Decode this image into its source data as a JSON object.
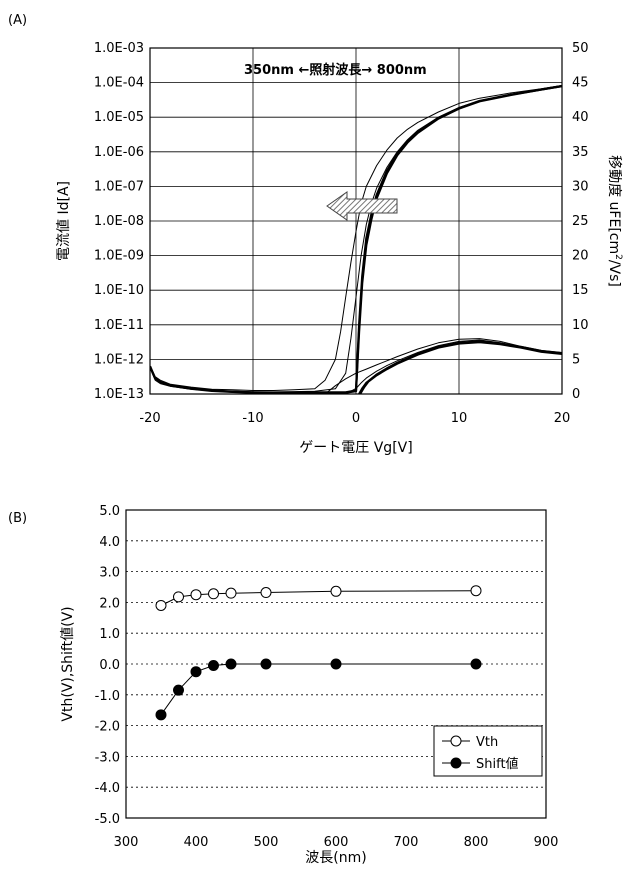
{
  "chart_data": [
    {
      "panel_label": "(A)",
      "type": "line",
      "xlabel": "ゲート電圧 Vg[V]",
      "ylabel_left": "電流値 Id[A]",
      "ylabel_right": "移動度 uFE[cm2/Vs]",
      "xlim": [
        -20,
        20
      ],
      "x_ticks": [
        "-20",
        "-10",
        "0",
        "10",
        "20"
      ],
      "y_left_log_range": [
        -13,
        -3
      ],
      "y_left_ticks": [
        "1.0E-13",
        "1.0E-12",
        "1.0E-11",
        "1.0E-10",
        "1.0E-09",
        "1.0E-08",
        "1.0E-07",
        "1.0E-06",
        "1.0E-05",
        "1.0E-04",
        "1.0E-03"
      ],
      "y_right_range": [
        0,
        50
      ],
      "y_right_ticks": [
        "0",
        "5",
        "10",
        "15",
        "20",
        "25",
        "30",
        "35",
        "40",
        "45",
        "50"
      ],
      "annotation": "350nm ←照射波長→ 800nm",
      "grid": true,
      "id_curves": [
        {
          "x": [
            -20,
            -19.5,
            -19,
            -18,
            -16,
            -14,
            -12,
            -10,
            -8,
            -6,
            -4,
            -3,
            -2,
            -1.5,
            -1,
            -0.5,
            0,
            0.5,
            1,
            2,
            3,
            4,
            5,
            6,
            8,
            10,
            12,
            15,
            18,
            20
          ],
          "y": [
            -12.2,
            -12.5,
            -12.6,
            -12.72,
            -12.8,
            -12.86,
            -12.88,
            -12.9,
            -12.9,
            -12.88,
            -12.85,
            -12.6,
            -12.0,
            -11.2,
            -10.2,
            -9.2,
            -8.3,
            -7.5,
            -7.0,
            -6.4,
            -5.95,
            -5.6,
            -5.35,
            -5.15,
            -4.85,
            -4.6,
            -4.45,
            -4.3,
            -4.18,
            -4.08
          ]
        },
        {
          "x": [
            -20,
            -19.5,
            -19,
            -18,
            -16,
            -14,
            -12,
            -10,
            -8,
            -6,
            -4,
            -2,
            -1,
            -0.5,
            0,
            0.5,
            1,
            1.5,
            2,
            3,
            4,
            5,
            6,
            8,
            10,
            12,
            15,
            18,
            20
          ],
          "y": [
            -12.25,
            -12.6,
            -12.7,
            -12.78,
            -12.86,
            -12.9,
            -12.92,
            -12.94,
            -12.94,
            -12.93,
            -12.92,
            -12.85,
            -12.4,
            -11.4,
            -10.2,
            -9.0,
            -8.1,
            -7.5,
            -7.05,
            -6.45,
            -6.0,
            -5.65,
            -5.38,
            -5.0,
            -4.72,
            -4.52,
            -4.34,
            -4.2,
            -4.1
          ]
        },
        {
          "x": [
            -20,
            -19.5,
            -19,
            -18,
            -16,
            -14,
            -12,
            -10,
            -8,
            -6,
            -4,
            -2,
            -1,
            0,
            0.3,
            0.6,
            1,
            1.5,
            2,
            3,
            4,
            5,
            6,
            8,
            10,
            12,
            15,
            18,
            20
          ],
          "y": [
            -12.2,
            -12.55,
            -12.65,
            -12.75,
            -12.84,
            -12.9,
            -12.93,
            -12.95,
            -12.96,
            -12.96,
            -12.95,
            -12.95,
            -12.95,
            -12.9,
            -11.0,
            -9.6,
            -8.5,
            -7.8,
            -7.25,
            -6.55,
            -6.05,
            -5.7,
            -5.42,
            -5.02,
            -4.74,
            -4.53,
            -4.35,
            -4.2,
            -4.1
          ]
        },
        {
          "x": [
            -20,
            -19.5,
            -19,
            -18,
            -16,
            -14,
            -12,
            -10,
            -8,
            -6,
            -4,
            -2,
            -1,
            0,
            0.3,
            0.6,
            1,
            1.5,
            2,
            3,
            4,
            5,
            6,
            8,
            10,
            12,
            15,
            18,
            20
          ],
          "y": [
            -12.2,
            -12.55,
            -12.65,
            -12.76,
            -12.85,
            -12.91,
            -12.94,
            -12.96,
            -12.97,
            -12.97,
            -12.96,
            -12.96,
            -12.96,
            -12.92,
            -11.2,
            -9.8,
            -8.7,
            -7.95,
            -7.35,
            -6.62,
            -6.1,
            -5.73,
            -5.45,
            -5.04,
            -4.75,
            -4.54,
            -4.36,
            -4.2,
            -4.1
          ]
        }
      ],
      "mobility_curves": [
        {
          "x": [
            -3,
            -2,
            -1,
            0,
            1,
            2,
            3,
            4,
            6,
            8,
            10,
            12,
            14,
            16,
            18,
            20
          ],
          "y": [
            0,
            1.2,
            2.2,
            3.0,
            3.6,
            4.2,
            4.8,
            5.4,
            6.5,
            7.4,
            7.9,
            8.0,
            7.6,
            6.9,
            6.3,
            6.0
          ]
        },
        {
          "x": [
            -1,
            0,
            0.5,
            1,
            2,
            3,
            4,
            6,
            8,
            10,
            12,
            14,
            16,
            18,
            20
          ],
          "y": [
            0,
            0.8,
            1.6,
            2.3,
            3.3,
            4.1,
            4.8,
            6.0,
            7.0,
            7.6,
            7.8,
            7.4,
            6.8,
            6.2,
            5.9
          ]
        },
        {
          "x": [
            0.3,
            0.6,
            1,
            2,
            3,
            4,
            6,
            8,
            10,
            12,
            14,
            16,
            18,
            20
          ],
          "y": [
            0,
            0.8,
            1.6,
            2.8,
            3.7,
            4.5,
            5.8,
            6.8,
            7.4,
            7.6,
            7.3,
            6.8,
            6.2,
            5.9
          ]
        },
        {
          "x": [
            0.4,
            0.8,
            1.2,
            2,
            3,
            4,
            6,
            8,
            10,
            12,
            14,
            16,
            18,
            20
          ],
          "y": [
            0,
            1.0,
            1.8,
            2.7,
            3.6,
            4.4,
            5.7,
            6.7,
            7.3,
            7.5,
            7.2,
            6.7,
            6.1,
            5.8
          ]
        }
      ]
    },
    {
      "panel_label": "(B)",
      "type": "line",
      "xlabel": "波長(nm)",
      "ylabel": "Vth(V),Shift値(V)",
      "xlim": [
        300,
        900
      ],
      "ylim": [
        -5,
        5
      ],
      "x_ticks": [
        "300",
        "400",
        "500",
        "600",
        "700",
        "800",
        "900"
      ],
      "y_ticks": [
        "5.0",
        "4.0",
        "3.0",
        "2.0",
        "1.0",
        "0.0",
        "-1.0",
        "-2.0",
        "-3.0",
        "-4.0",
        "-5.0"
      ],
      "grid": "horizontal dashed",
      "legend_position": "bottom-right",
      "x": [
        350,
        375,
        400,
        425,
        450,
        500,
        600,
        800
      ],
      "series": [
        {
          "name": "Vth",
          "marker": "open-circle",
          "values": [
            1.9,
            2.18,
            2.25,
            2.28,
            2.3,
            2.32,
            2.36,
            2.38
          ]
        },
        {
          "name": "Shift値",
          "marker": "filled-circle",
          "values": [
            -1.65,
            -0.85,
            -0.25,
            -0.05,
            0.0,
            0.0,
            0.0,
            0.0
          ]
        }
      ]
    }
  ]
}
